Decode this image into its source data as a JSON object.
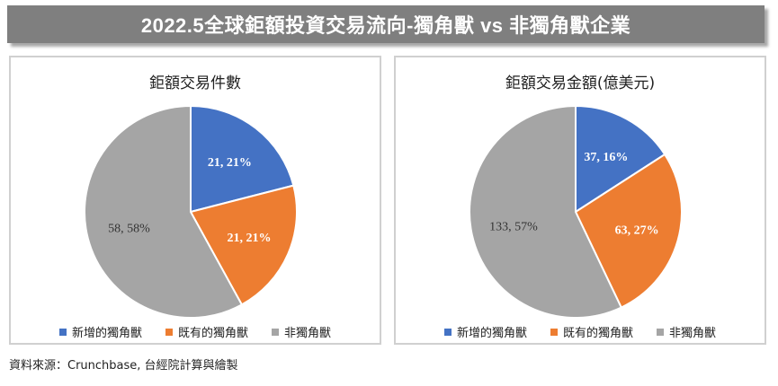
{
  "banner": {
    "title": "2022.5全球鉅額投資交易流向-獨角獸 vs 非獨角獸企業"
  },
  "colors": {
    "blue": "#4472c4",
    "orange": "#ed7d31",
    "gray": "#a5a5a5"
  },
  "chart_data": [
    {
      "type": "pie",
      "title": "鉅額交易件數",
      "categories": [
        "新增的獨角獸",
        "既有的獨角獸",
        "非獨角獸"
      ],
      "values": [
        21,
        21,
        58
      ],
      "labels": [
        "21, 21%",
        "21, 21%",
        "58, 58%"
      ],
      "legend": "bottom"
    },
    {
      "type": "pie",
      "title": "鉅額交易金額(億美元)",
      "categories": [
        "新增的獨角獸",
        "既有的獨角獸",
        "非獨角獸"
      ],
      "values": [
        37,
        63,
        133
      ],
      "labels": [
        "37, 16%",
        "63, 27%",
        "133, 57%"
      ],
      "legend": "bottom"
    }
  ],
  "footer": {
    "source": "資料來源：Crunchbase, 台經院計算與繪製"
  }
}
